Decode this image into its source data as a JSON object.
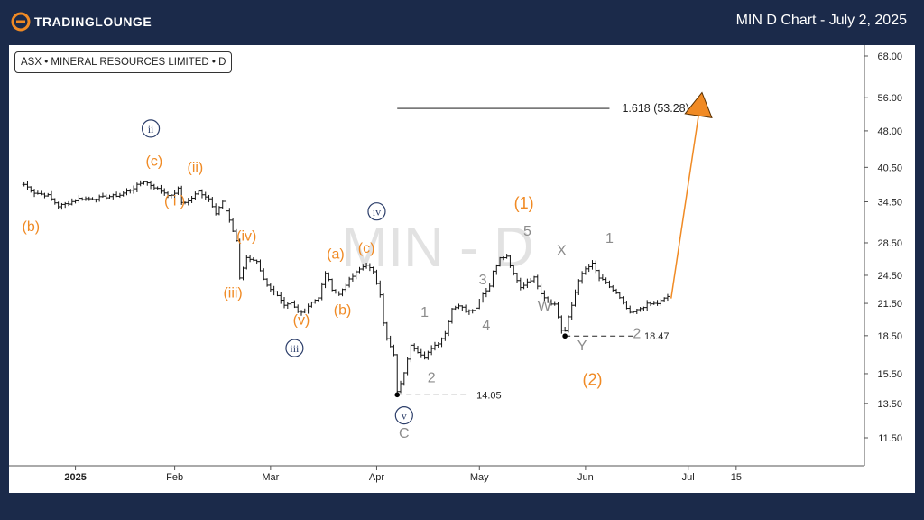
{
  "header": {
    "brand": "TRADINGLOUNGE",
    "title": "MIN D Chart - July 2, 2025"
  },
  "legend": {
    "text": "ASX • MINERAL RESOURCES LIMITED • D"
  },
  "watermark": "MIN - D",
  "colors": {
    "orange": "#f08a24",
    "navy": "#2c3e6a",
    "gray": "#8c8c8c",
    "background": "#1b2a4a"
  },
  "chart_data": {
    "type": "ohlc",
    "title": "MIN D Chart - July 2, 2025",
    "symbol": "ASX • MINERAL RESOURCES LIMITED • D",
    "y_scale": "log",
    "ylim": [
      10.3,
      71
    ],
    "y_ticks": [
      "68.00",
      "56.00",
      "48.00",
      "40.50",
      "34.50",
      "28.50",
      "24.50",
      "21.50",
      "18.50",
      "15.50",
      "13.50",
      "11.50"
    ],
    "x_ticks": [
      {
        "day": 2,
        "label": "2025",
        "bold": true
      },
      {
        "day": 31,
        "label": "Feb"
      },
      {
        "day": 59,
        "label": "Mar"
      },
      {
        "day": 90,
        "label": "Apr"
      },
      {
        "day": 120,
        "label": "May"
      },
      {
        "day": 151,
        "label": "Jun"
      },
      {
        "day": 181,
        "label": "Jul"
      },
      {
        "day": 195,
        "label": "15"
      }
    ],
    "price_points": [
      [
        -13,
        37.4
      ],
      [
        -10,
        36.0
      ],
      [
        -6,
        35.5
      ],
      [
        -3,
        33.8
      ],
      [
        0,
        34.3
      ],
      [
        3,
        35.0
      ],
      [
        7,
        35.0
      ],
      [
        11,
        35.3
      ],
      [
        15,
        35.6
      ],
      [
        19,
        36.8
      ],
      [
        22,
        38.0
      ],
      [
        26,
        36.6
      ],
      [
        30,
        35.4
      ],
      [
        32,
        36.6
      ],
      [
        33,
        34.4
      ],
      [
        35,
        34.6
      ],
      [
        38,
        36.2
      ],
      [
        41,
        35.0
      ],
      [
        43,
        32.8
      ],
      [
        45,
        34.5
      ],
      [
        47,
        31.5
      ],
      [
        49,
        28.8
      ],
      [
        50,
        24.2
      ],
      [
        52,
        26.5
      ],
      [
        55,
        26.2
      ],
      [
        57,
        24.0
      ],
      [
        59,
        23.0
      ],
      [
        61,
        22.2
      ],
      [
        63,
        21.2
      ],
      [
        65,
        21.5
      ],
      [
        67,
        20.7
      ],
      [
        69,
        20.8
      ],
      [
        71,
        21.7
      ],
      [
        73,
        22.0
      ],
      [
        75,
        24.8
      ],
      [
        77,
        23.0
      ],
      [
        79,
        22.4
      ],
      [
        81,
        23.5
      ],
      [
        83,
        24.4
      ],
      [
        85,
        25.2
      ],
      [
        87,
        25.8
      ],
      [
        89,
        24.8
      ],
      [
        91,
        22.5
      ],
      [
        92,
        19.7
      ],
      [
        93,
        18.2
      ],
      [
        95,
        16.9
      ],
      [
        96,
        14.2
      ],
      [
        98,
        15.5
      ],
      [
        100,
        17.8
      ],
      [
        102,
        17.2
      ],
      [
        104,
        16.6
      ],
      [
        106,
        17.5
      ],
      [
        108,
        17.9
      ],
      [
        110,
        18.7
      ],
      [
        112,
        21.0
      ],
      [
        114,
        21.3
      ],
      [
        116,
        20.8
      ],
      [
        119,
        21.0
      ],
      [
        121,
        22.5
      ],
      [
        123,
        23.3
      ],
      [
        124,
        25.0
      ],
      [
        126,
        26.5
      ],
      [
        128,
        26.7
      ],
      [
        130,
        24.6
      ],
      [
        132,
        23.1
      ],
      [
        134,
        23.8
      ],
      [
        136,
        24.2
      ],
      [
        138,
        22.6
      ],
      [
        140,
        21.7
      ],
      [
        142,
        21.4
      ],
      [
        144,
        19.0
      ],
      [
        145,
        18.9
      ],
      [
        147,
        21.3
      ],
      [
        149,
        24.0
      ],
      [
        151,
        25.2
      ],
      [
        153,
        25.8
      ],
      [
        155,
        24.2
      ],
      [
        157,
        23.6
      ],
      [
        160,
        22.5
      ],
      [
        162,
        21.5
      ],
      [
        164,
        20.5
      ],
      [
        166,
        20.8
      ],
      [
        169,
        21.4
      ],
      [
        172,
        21.5
      ],
      [
        175,
        22.2
      ]
    ],
    "projection": {
      "from": {
        "day": 176,
        "price": 22.0
      },
      "to": {
        "day": 184,
        "price": 51.5
      },
      "color": "#f08a24"
    },
    "levels": [
      {
        "label": "1.618 (53.28)",
        "price": 53.28,
        "from_day": 96,
        "to_day": 158,
        "style": "solid"
      },
      {
        "label": "14.05",
        "price": 14.05,
        "from_day": 96,
        "to_day": 116,
        "style": "dashed"
      },
      {
        "label": "18.47",
        "price": 18.47,
        "from_day": 145,
        "to_day": 165,
        "style": "dashed"
      }
    ],
    "wave_labels": [
      {
        "text": "(b)",
        "day": -11,
        "price": 30.1,
        "color": "orange"
      },
      {
        "text": "(c)",
        "day": 25,
        "price": 40.8,
        "color": "orange"
      },
      {
        "text": "i",
        "day": 31,
        "price": 33.9,
        "color": "orange",
        "paren": true
      },
      {
        "text": "(ii)",
        "day": 37,
        "price": 39.6,
        "color": "orange"
      },
      {
        "text": "(iv)",
        "day": 52,
        "price": 28.8,
        "color": "orange"
      },
      {
        "text": "(iii)",
        "day": 48,
        "price": 22.1,
        "color": "orange"
      },
      {
        "text": "(v)",
        "day": 68,
        "price": 19.5,
        "color": "orange"
      },
      {
        "text": "(a)",
        "day": 78,
        "price": 26.5,
        "color": "orange"
      },
      {
        "text": "(b)",
        "day": 80,
        "price": 20.4,
        "color": "orange"
      },
      {
        "text": "(c)",
        "day": 87,
        "price": 27.2,
        "color": "orange"
      },
      {
        "text": "(1)",
        "day": 133,
        "price": 33.4,
        "color": "orange",
        "large": true
      },
      {
        "text": "(2)",
        "day": 153,
        "price": 14.7,
        "color": "orange",
        "large": true
      },
      {
        "text": "1",
        "day": 104,
        "price": 20.2,
        "color": "gray"
      },
      {
        "text": "2",
        "day": 106,
        "price": 14.9,
        "color": "gray"
      },
      {
        "text": "3",
        "day": 121,
        "price": 23.5,
        "color": "gray"
      },
      {
        "text": "4",
        "day": 122,
        "price": 19.0,
        "color": "gray"
      },
      {
        "text": "5",
        "day": 134,
        "price": 29.5,
        "color": "gray"
      },
      {
        "text": "W",
        "day": 139,
        "price": 20.8,
        "color": "gray"
      },
      {
        "text": "X",
        "day": 144,
        "price": 26.9,
        "color": "gray"
      },
      {
        "text": "Y",
        "day": 150,
        "price": 17.3,
        "color": "gray"
      },
      {
        "text": "1",
        "day": 158,
        "price": 28.5,
        "color": "gray"
      },
      {
        "text": "2",
        "day": 166,
        "price": 18.3,
        "color": "gray"
      },
      {
        "text": "C",
        "day": 98,
        "price": 11.5,
        "color": "gray"
      },
      {
        "text": "ii",
        "day": 24,
        "price": 47.5,
        "color": "navy",
        "circle": true
      },
      {
        "text": "iii",
        "day": 66,
        "price": 17.1,
        "color": "navy",
        "circle": true
      },
      {
        "text": "iv",
        "day": 90,
        "price": 32.3,
        "color": "navy",
        "circle": true
      },
      {
        "text": "v",
        "day": 98,
        "price": 12.5,
        "color": "navy",
        "circle": true
      }
    ]
  }
}
